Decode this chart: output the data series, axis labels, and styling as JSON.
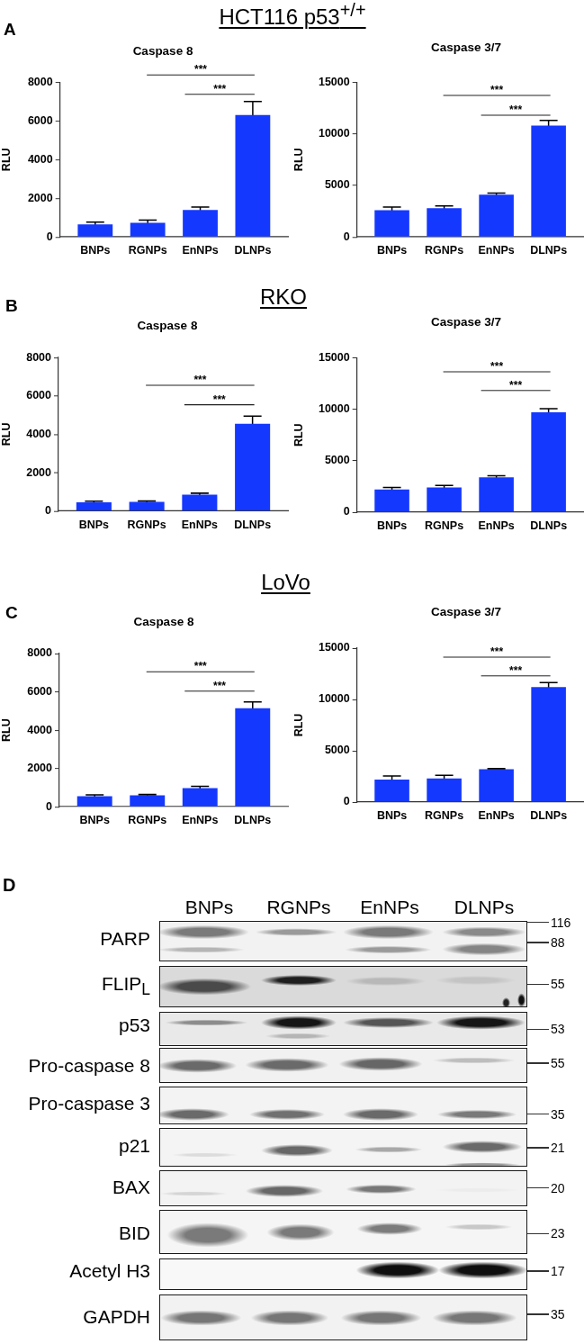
{
  "chart_data": [
    {
      "type": "other",
      "title": "HCT116 p53$^{+/+}$",
      "annotations": [
        "A"
      ]
    },
    {
      "type": "bar",
      "title": "Caspase 8",
      "ylabel": "RLU",
      "categories": [
        "BNPs",
        "RGNPs",
        "EnNPs",
        "DLNPs"
      ],
      "values": [
        650,
        730,
        1400,
        6300
      ],
      "errors": [
        120,
        140,
        150,
        700
      ],
      "color": "#1538ff",
      "ylim": [
        0,
        8000
      ],
      "yticks": [
        0,
        2000,
        4000,
        6000,
        8000
      ],
      "annotations": [
        "***",
        "***"
      ]
    },
    {
      "type": "bar",
      "title": "Caspase 3/7",
      "ylabel": "RLU",
      "categories": [
        "BNPs",
        "RGNPs",
        "EnNPs",
        "DLNPs"
      ],
      "values": [
        2600,
        2800,
        4100,
        10800
      ],
      "errors": [
        300,
        200,
        150,
        500
      ],
      "color": "#1538ff",
      "ylim": [
        0,
        15000
      ],
      "yticks": [
        0,
        5000,
        10000,
        15000
      ],
      "annotations": [
        "***",
        "***"
      ]
    },
    {
      "type": "other",
      "title": "RKO",
      "annotations": [
        "B"
      ]
    },
    {
      "type": "bar",
      "title": "Caspase 8",
      "ylabel": "RLU",
      "categories": [
        "BNPs",
        "RGNPs",
        "EnNPs",
        "DLNPs"
      ],
      "values": [
        450,
        480,
        850,
        4550
      ],
      "errors": [
        60,
        50,
        80,
        400
      ],
      "color": "#1538ff",
      "ylim": [
        0,
        8000
      ],
      "yticks": [
        0,
        2000,
        4000,
        6000,
        8000
      ],
      "annotations": [
        "***",
        "***"
      ]
    },
    {
      "type": "bar",
      "title": "Caspase 3/7",
      "ylabel": "RLU",
      "categories": [
        "BNPs",
        "RGNPs",
        "EnNPs",
        "DLNPs"
      ],
      "values": [
        2200,
        2400,
        3400,
        9700
      ],
      "errors": [
        200,
        200,
        150,
        350
      ],
      "color": "#1538ff",
      "ylim": [
        0,
        15000
      ],
      "yticks": [
        0,
        5000,
        10000,
        15000
      ],
      "annotations": [
        "***",
        "***"
      ]
    },
    {
      "type": "other",
      "title": "LoVo",
      "annotations": [
        "C"
      ]
    },
    {
      "type": "bar",
      "title": "Caspase 8",
      "ylabel": "RLU",
      "categories": [
        "BNPs",
        "RGNPs",
        "EnNPs",
        "DLNPs"
      ],
      "values": [
        550,
        600,
        970,
        5150
      ],
      "errors": [
        70,
        40,
        100,
        330
      ],
      "color": "#1538ff",
      "ylim": [
        0,
        8000
      ],
      "yticks": [
        0,
        2000,
        4000,
        6000,
        8000
      ],
      "annotations": [
        "***",
        "***"
      ]
    },
    {
      "type": "bar",
      "title": "Caspase 3/7",
      "ylabel": "RLU",
      "categories": [
        "BNPs",
        "RGNPs",
        "EnNPs",
        "DLNPs"
      ],
      "values": [
        2200,
        2300,
        3200,
        11200
      ],
      "errors": [
        350,
        300,
        60,
        450
      ],
      "color": "#1538ff",
      "ylim": [
        0,
        15000
      ],
      "yticks": [
        0,
        5000,
        10000,
        15000
      ],
      "annotations": [
        "***",
        "***"
      ]
    },
    {
      "type": "other",
      "annotations": [
        "D"
      ],
      "categories": [
        "BNPs",
        "RGNPs",
        "EnNPs",
        "DLNPs"
      ],
      "y_categories": [
        "PARP",
        null,
        "FLIP$_{L}$",
        "p53",
        "Pro-caspase 8",
        "Pro-caspase 3",
        "p21",
        "BAX",
        "BID",
        "Acetyl H3",
        "GAPDH"
      ],
      "y2_categories": [
        "116",
        "88",
        "55",
        "53",
        "55",
        "35",
        "21",
        "20",
        "23",
        "17",
        "35"
      ]
    }
  ]
}
